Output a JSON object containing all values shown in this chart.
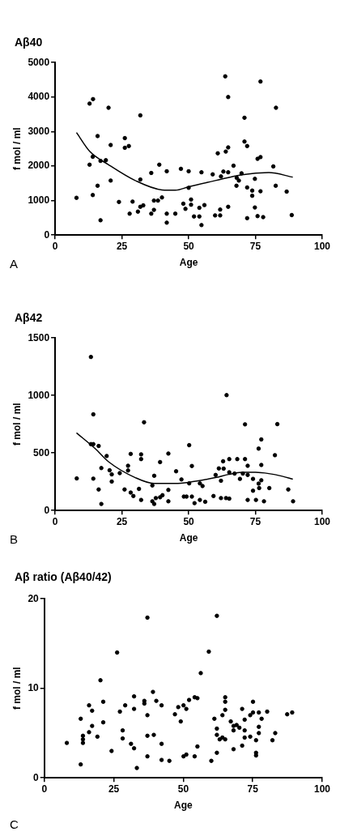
{
  "chart_data": [
    {
      "type": "scatter",
      "title": "Aβ40",
      "xlabel": "Age",
      "ylabel": "f mol / ml",
      "annotations": [
        "A"
      ],
      "xlim": [
        0,
        100
      ],
      "xticks": [
        0,
        25,
        50,
        75,
        100
      ],
      "ylim": [
        0,
        5000
      ],
      "yticks": [
        0,
        1000,
        2000,
        3000,
        4000,
        5000
      ],
      "grid": false,
      "legend": false,
      "series": [
        {
          "type": "scatter",
          "marker": "circle",
          "color": "#000000",
          "x": [
            8,
            12.9,
            14.2,
            12.9,
            14.1,
            14.1,
            15.9,
            15.9,
            17,
            17,
            19,
            20,
            20.8,
            20.8,
            23.9,
            26.1,
            26.1,
            27.6,
            27.9,
            29,
            31,
            31.9,
            31.9,
            31.9,
            33,
            36,
            36,
            37,
            37,
            38.5,
            40,
            39,
            41.8,
            41.8,
            41.8,
            45,
            47.1,
            48,
            48.8,
            50,
            50,
            50.9,
            50.9,
            52,
            54,
            54.8,
            54.8,
            55.9,
            54,
            59,
            59.9,
            61.8,
            60.9,
            61.8,
            62.1,
            63,
            63.7,
            63.9,
            64.8,
            64.8,
            64.8,
            64.8,
            66.8,
            67.9,
            68.8,
            68,
            69.8,
            70.9,
            70.9,
            71.9,
            71.9,
            71.9,
            73.8,
            73.8,
            74.8,
            74.8,
            75.8,
            75.8,
            76.9,
            76.9,
            76.9,
            77.9,
            81.7,
            82.6,
            82.7,
            86.7,
            88.6
          ],
          "values": [
            1080,
            3810,
            3940,
            2040,
            2270,
            1160,
            2870,
            1430,
            430,
            2150,
            2170,
            3690,
            2610,
            1580,
            960,
            2810,
            2530,
            2580,
            620,
            970,
            680,
            3470,
            1610,
            820,
            860,
            1800,
            620,
            730,
            1000,
            1000,
            1090,
            2040,
            1850,
            620,
            360,
            620,
            1920,
            910,
            760,
            1850,
            1370,
            1030,
            880,
            540,
            540,
            1820,
            290,
            870,
            790,
            1760,
            570,
            570,
            2370,
            740,
            1700,
            1840,
            4600,
            2420,
            4000,
            2540,
            1820,
            820,
            2010,
            1430,
            1580,
            1660,
            1790,
            3400,
            2710,
            2580,
            1380,
            490,
            1290,
            1140,
            1630,
            800,
            550,
            2210,
            2260,
            4450,
            1270,
            520,
            1990,
            1430,
            3690,
            1260,
            580
          ]
        },
        {
          "type": "line",
          "marker": "none",
          "color": "#000000",
          "x": [
            8,
            13,
            20,
            30,
            40,
            45,
            50,
            60,
            70,
            80,
            89
          ],
          "values": [
            2970,
            2420,
            2040,
            1580,
            1310,
            1300,
            1400,
            1580,
            1750,
            1810,
            1680
          ]
        }
      ]
    },
    {
      "type": "scatter",
      "title": "Aβ42",
      "xlabel": "Age",
      "ylabel": "f mol / ml",
      "annotations": [
        "B"
      ],
      "xlim": [
        0,
        100
      ],
      "xticks": [
        0,
        25,
        50,
        75,
        100
      ],
      "ylim": [
        0,
        1500
      ],
      "yticks": [
        0,
        500,
        1000,
        1500
      ],
      "grid": false,
      "legend": false,
      "series": [
        {
          "type": "scatter",
          "marker": "circle",
          "color": "#000000",
          "x": [
            8.1,
            13.4,
            13.4,
            14.3,
            14.3,
            14.3,
            16.3,
            16.3,
            17.3,
            17.3,
            19.3,
            20.4,
            21.2,
            21.2,
            24.2,
            26,
            27.3,
            27.3,
            28.3,
            28.3,
            29.3,
            31.4,
            32.2,
            32.2,
            32.2,
            33.3,
            36.4,
            36.4,
            37.1,
            37.1,
            37.7,
            39.3,
            39.3,
            40.2,
            42.4,
            42.4,
            42.4,
            45.3,
            47.3,
            48.2,
            49.2,
            50.2,
            50.2,
            51.2,
            51.2,
            52.2,
            54.2,
            55.2,
            54.2,
            56.2,
            59.3,
            60.1,
            61.3,
            62.1,
            62.1,
            62.9,
            63.1,
            64.2,
            64,
            65.2,
            65.2,
            65.2,
            67.2,
            68.2,
            69.2,
            70.3,
            71.1,
            71.1,
            72.1,
            72.1,
            72.1,
            74.1,
            74.1,
            75.2,
            76.2,
            76.2,
            76.4,
            77.2,
            77.2,
            77.2,
            78.2,
            80.2,
            82.3,
            83.2,
            87.3,
            89.1
          ],
          "values": [
            279,
            1335,
            577,
            577,
            836,
            277,
            561,
            183,
            57,
            369,
            474,
            350,
            314,
            252,
            325,
            183,
            389,
            348,
            492,
            156,
            126,
            188,
            488,
            447,
            92,
            767,
            218,
            80,
            302,
            57,
            108,
            421,
            115,
            133,
            495,
            179,
            80,
            341,
            270,
            121,
            121,
            568,
            236,
            387,
            121,
            64,
            236,
            213,
            92,
            76,
            126,
            309,
            366,
            259,
            108,
            428,
            364,
            1003,
            108,
            447,
            332,
            103,
            321,
            447,
            275,
            321,
            749,
            447,
            389,
            309,
            92,
            275,
            172,
            92,
            538,
            234,
            195,
            618,
            396,
            263,
            80,
            195,
            481,
            751,
            183,
            80
          ]
        },
        {
          "type": "line",
          "marker": "none",
          "color": "#000000",
          "x": [
            8,
            15,
            20,
            30,
            37,
            45,
            50,
            60,
            65,
            70,
            75,
            80,
            85,
            89
          ],
          "values": [
            675,
            538,
            424,
            286,
            236,
            236,
            245,
            286,
            314,
            332,
            332,
            321,
            298,
            272
          ]
        }
      ]
    },
    {
      "type": "scatter",
      "title": "Aβ ratio (Aβ40/42)",
      "xlabel": "Age",
      "ylabel": "f mol / ml",
      "annotations": [
        "C"
      ],
      "xlim": [
        0,
        100
      ],
      "xticks": [
        0,
        25,
        50,
        75,
        100
      ],
      "ylim": [
        0,
        20
      ],
      "yticks": [
        0,
        10,
        20
      ],
      "grid": false,
      "legend": false,
      "series": [
        {
          "type": "scatter",
          "marker": "circle",
          "color": "#000000",
          "x": [
            8.1,
            13.1,
            13.1,
            13.9,
            13.9,
            13.9,
            16.1,
            16.1,
            17.2,
            17.2,
            19.1,
            20.2,
            21.2,
            21.2,
            24.2,
            26.2,
            27.2,
            28.2,
            28.2,
            29.1,
            31.2,
            32.3,
            32.3,
            32.3,
            33.3,
            36,
            36,
            37.1,
            37.1,
            37.1,
            37.1,
            39.1,
            39.4,
            40.3,
            42.2,
            42.2,
            42.2,
            45,
            47,
            48.2,
            49.1,
            50.1,
            50.1,
            51.1,
            51.1,
            52.1,
            54.1,
            54.1,
            55.1,
            55.1,
            56.3,
            59.2,
            60.1,
            61.2,
            62.1,
            62.1,
            62.1,
            62.1,
            63.1,
            64.1,
            64.1,
            65.1,
            65.1,
            65.1,
            65.1,
            67.1,
            68.1,
            68.1,
            68.1,
            69.2,
            70.2,
            71.2,
            71.2,
            72.1,
            72.1,
            72.1,
            74.1,
            74.1,
            75.1,
            75.1,
            76.2,
            76.2,
            76.2,
            77.2,
            77.2,
            77.2,
            78.2,
            80.2,
            82.1,
            83.1,
            87.4,
            89.2
          ],
          "values": [
            3.9,
            6.6,
            1.5,
            4.7,
            4.3,
            3.9,
            8.1,
            5.1,
            7.5,
            5.8,
            4.6,
            10.9,
            8.5,
            6.2,
            3.0,
            14.0,
            7.4,
            5.3,
            4.4,
            8.1,
            3.8,
            9.1,
            7.7,
            3.3,
            1.1,
            8.6,
            8.3,
            17.9,
            7.0,
            4.7,
            2.4,
            9.6,
            4.8,
            8.6,
            8.1,
            3.8,
            2.0,
            1.9,
            7.1,
            7.9,
            6.3,
            8.1,
            2.4,
            7.7,
            2.6,
            8.7,
            9.0,
            2.4,
            8.9,
            3.5,
            11.7,
            14.1,
            1.9,
            6.6,
            18.1,
            5.5,
            4.8,
            2.8,
            4.3,
            7.0,
            4.5,
            9.0,
            8.5,
            7.6,
            4.3,
            6.3,
            5.8,
            5.3,
            3.2,
            5.9,
            5.6,
            7.7,
            3.6,
            6.5,
            5.3,
            4.5,
            7.0,
            4.6,
            8.5,
            7.3,
            4.2,
            2.8,
            2.5,
            7.3,
            5.7,
            5.0,
            6.6,
            7.4,
            4.2,
            5.0,
            7.1,
            7.3
          ]
        }
      ]
    }
  ]
}
